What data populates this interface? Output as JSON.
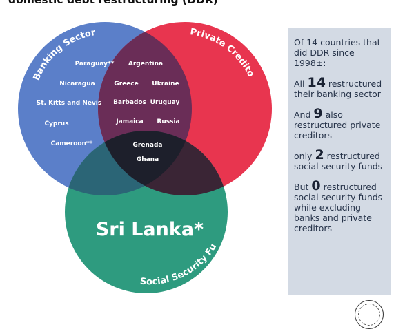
{
  "header": {
    "title": "domestic debt restructuring (DDR)"
  },
  "venn": {
    "colors": {
      "banking": "#5b7fc9",
      "private": "#e8354f",
      "social": "#2e9b7f"
    },
    "sets": {
      "banking_label": "Banking Sector",
      "private_label": "Private Creditors",
      "social_label": "Social Security Funds"
    },
    "banking_only": [
      "Paraguay**",
      "Nicaragua",
      "St. Kitts and Nevis",
      "Cyprus",
      "Cameroon**"
    ],
    "banking_private": [
      "Argentina",
      "Greece",
      "Ukraine",
      "Barbados",
      "Uruguay",
      "Jamaica",
      "Russia"
    ],
    "all_three": [
      "Grenada",
      "Ghana"
    ],
    "social_only_label": "Sri Lanka*"
  },
  "info": {
    "intro": "Of 14 countries that did DDR since 1998±:",
    "p1_pre": "All",
    "p1_num": "14",
    "p1_post": "restructured their banking sector",
    "p2_pre": "And",
    "p2_num": "9",
    "p2_post": "also restructured private creditors",
    "p3_pre": "only",
    "p3_num": "2",
    "p3_post": "restructured social security funds",
    "p4_pre": "But",
    "p4_num": "0",
    "p4_post": "restructured social security funds while excluding banks and private creditors"
  }
}
